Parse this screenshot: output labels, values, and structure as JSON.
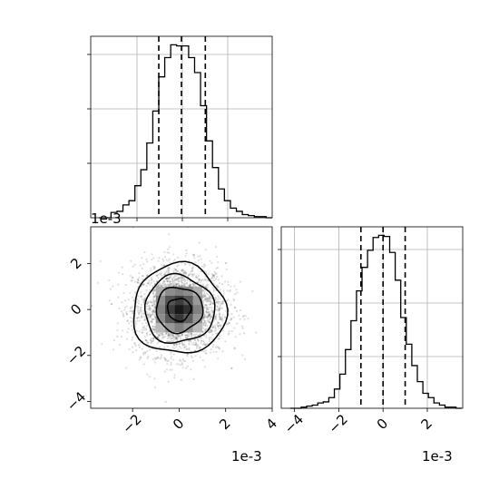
{
  "figure": {
    "x_offset_label": "1e-3",
    "y_offset_label": "1e-3",
    "y_offset_label_2d": "1e-3"
  },
  "chart_data": [
    {
      "type": "bar",
      "panel": "marginal-histogram-x",
      "bins": [
        -3.45,
        -3.2,
        -2.95,
        -2.7,
        -2.45,
        -2.2,
        -1.95,
        -1.7,
        -1.45,
        -1.2,
        -0.95,
        -0.7,
        -0.45,
        -0.2,
        0.05,
        0.3,
        0.55,
        0.8,
        1.05,
        1.3,
        1.55,
        1.8,
        2.05,
        2.3,
        2.55,
        2.8,
        3.05,
        3.3,
        3.55,
        3.8
      ],
      "counts": [
        0,
        0,
        0.05,
        0.06,
        0.12,
        0.16,
        0.3,
        0.45,
        0.7,
        1.0,
        1.32,
        1.5,
        1.62,
        1.61,
        1.61,
        1.5,
        1.36,
        1.05,
        0.72,
        0.47,
        0.27,
        0.16,
        0.09,
        0.06,
        0.03,
        0.02,
        0.01,
        0.01,
        0
      ],
      "xlim": [
        -3.8,
        3.8
      ],
      "ylim": [
        0,
        1.7
      ],
      "quantiles": [
        -0.95,
        0.0,
        1.0
      ],
      "grid": true
    },
    {
      "type": "scatter",
      "panel": "joint-density",
      "xlim": [
        -3.8,
        4.0
      ],
      "ylim": [
        -4.3,
        3.6
      ],
      "x_tick_labels": [
        "−2",
        "0",
        "2",
        "4"
      ],
      "x_tick_values": [
        -2,
        0,
        2,
        4
      ],
      "y_tick_labels": [
        "−4",
        "−2",
        "0",
        "2"
      ],
      "y_tick_values": [
        -4,
        -2,
        0,
        2
      ],
      "center": [
        0,
        0
      ],
      "std": [
        1,
        1
      ],
      "n_points": 2600,
      "contour_radii": [
        0.5,
        1.0,
        1.5,
        2.0
      ],
      "density_grid": {
        "x_edges": [
          -1.0,
          -0.6,
          -0.2,
          0.2,
          0.6,
          1.0
        ],
        "y_edges": [
          -1.0,
          -0.6,
          -0.2,
          0.2,
          0.6,
          1.0
        ],
        "levels": [
          [
            0.35,
            0.5,
            0.55,
            0.5,
            0.35
          ],
          [
            0.5,
            0.75,
            0.85,
            0.72,
            0.45
          ],
          [
            0.55,
            0.85,
            1.0,
            0.9,
            0.55
          ],
          [
            0.5,
            0.72,
            0.88,
            0.7,
            0.45
          ],
          [
            0.3,
            0.45,
            0.55,
            0.45,
            0.3
          ]
        ]
      },
      "grid": true
    },
    {
      "type": "bar",
      "panel": "marginal-histogram-y",
      "bins": [
        -4.2,
        -3.95,
        -3.7,
        -3.45,
        -3.2,
        -2.95,
        -2.7,
        -2.45,
        -2.2,
        -1.95,
        -1.7,
        -1.45,
        -1.2,
        -0.95,
        -0.7,
        -0.45,
        -0.2,
        0.05,
        0.3,
        0.55,
        0.8,
        1.05,
        1.3,
        1.55,
        1.8,
        2.05,
        2.3,
        2.55,
        2.8,
        3.05,
        3.3,
        3.55
      ],
      "counts": [
        0,
        0,
        0.01,
        0.02,
        0.03,
        0.05,
        0.06,
        0.1,
        0.18,
        0.32,
        0.55,
        0.82,
        1.1,
        1.32,
        1.48,
        1.6,
        1.62,
        1.61,
        1.46,
        1.2,
        0.85,
        0.6,
        0.4,
        0.25,
        0.14,
        0.1,
        0.05,
        0.03,
        0.01,
        0.01,
        0
      ],
      "xlim": [
        -4.6,
        3.6
      ],
      "ylim": [
        0,
        1.7
      ],
      "x_tick_labels": [
        "−4",
        "−2",
        "0",
        "2"
      ],
      "x_tick_values": [
        -4,
        -2,
        0,
        2
      ],
      "quantiles": [
        -1.0,
        0.0,
        1.0
      ],
      "grid": true
    }
  ]
}
